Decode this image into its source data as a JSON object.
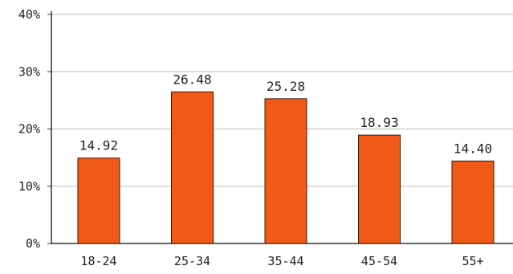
{
  "chart_data": {
    "type": "bar",
    "categories": [
      "18-24",
      "25-34",
      "35-44",
      "45-54",
      "55+"
    ],
    "values": [
      14.92,
      26.48,
      25.28,
      18.93,
      14.4
    ],
    "value_labels": [
      "14.92",
      "26.48",
      "25.28",
      "18.93",
      "14.40"
    ],
    "title": "",
    "xlabel": "",
    "ylabel": "",
    "ylim": [
      0,
      40
    ],
    "yticks": [
      0,
      10,
      20,
      30,
      40
    ],
    "ytick_labels": [
      "0%",
      "10%",
      "20%",
      "30%",
      "40%"
    ],
    "grid": true,
    "legend": "none",
    "colors": {
      "bar": "#f05a16",
      "bar_outline": "#3a1a0a",
      "grid": "#c9c9c9",
      "axis": "#333333"
    }
  }
}
